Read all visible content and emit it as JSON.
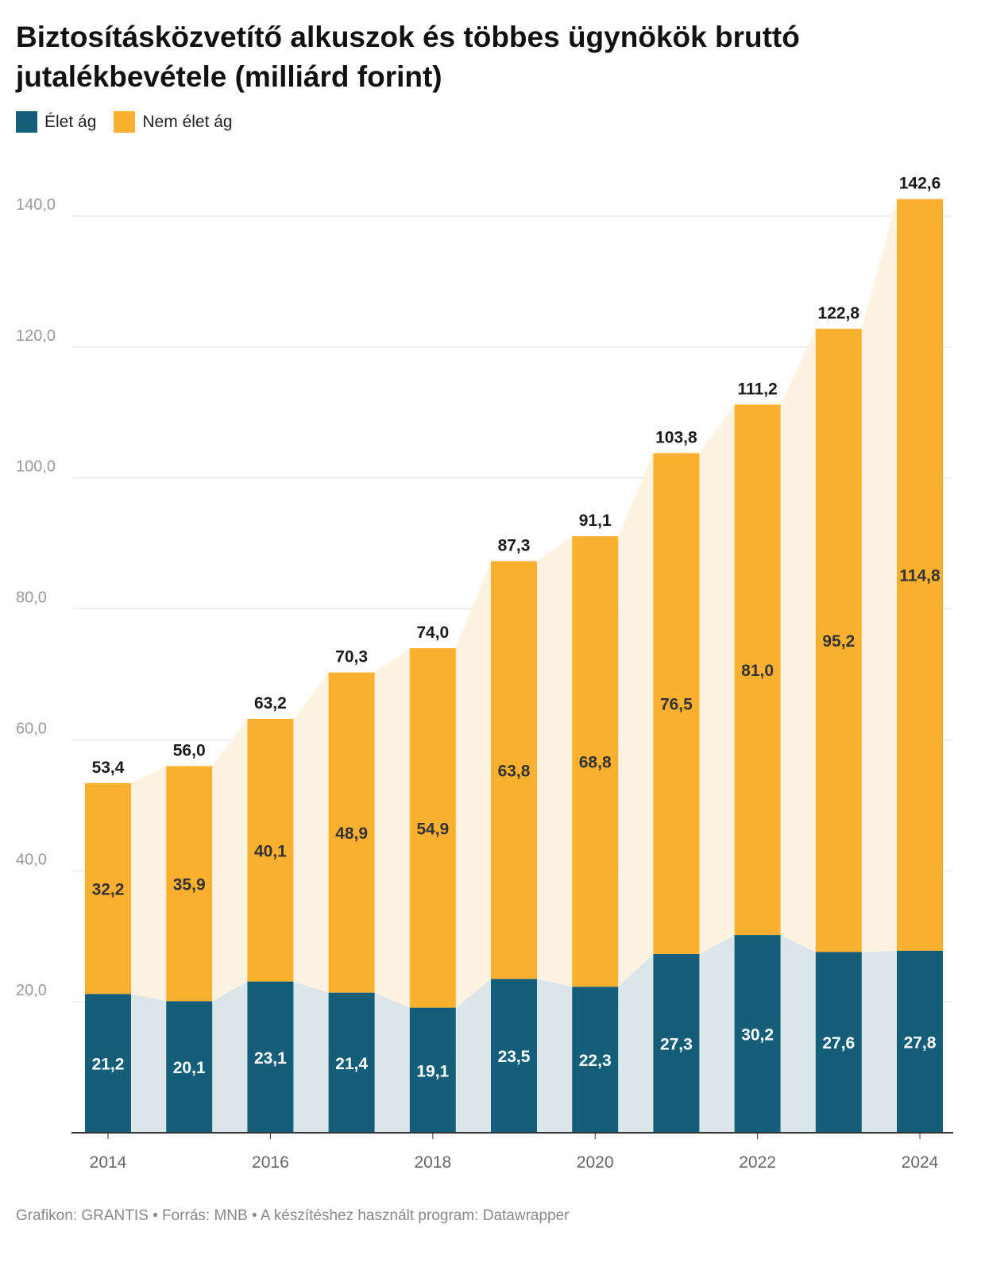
{
  "chart_data": {
    "type": "bar",
    "stacked": true,
    "title": "Biztosításközvetítő alkuszok és többes ügynökök bruttó jutalékbevétele (milliárd forint)",
    "categories": [
      "2014",
      "2015",
      "2016",
      "2017",
      "2018",
      "2019",
      "2020",
      "2021",
      "2022",
      "2023",
      "2024"
    ],
    "x_tick_labels": [
      "2014",
      "2016",
      "2018",
      "2020",
      "2022",
      "2024"
    ],
    "series": [
      {
        "name": "Élet ág",
        "color": "#155e7a",
        "area_color": "#dbe6ea",
        "values": [
          21.2,
          20.1,
          23.1,
          21.4,
          19.1,
          23.5,
          22.3,
          27.3,
          30.2,
          27.6,
          27.8
        ],
        "labels": [
          "21,2",
          "20,1",
          "23,1",
          "21,4",
          "19,1",
          "23,5",
          "22,3",
          "27,3",
          "30,2",
          "27,6",
          "27,8"
        ]
      },
      {
        "name": "Nem élet ág",
        "color": "#fbb030",
        "area_color": "#fef3e0",
        "values": [
          32.2,
          35.9,
          40.1,
          48.9,
          54.9,
          63.8,
          68.8,
          76.5,
          81.0,
          95.2,
          114.8
        ],
        "labels": [
          "32,2",
          "35,9",
          "40,1",
          "48,9",
          "54,9",
          "63,8",
          "68,8",
          "76,5",
          "81,0",
          "95,2",
          "114,8"
        ]
      }
    ],
    "totals": [
      53.4,
      56.0,
      63.2,
      70.3,
      74.0,
      87.3,
      91.1,
      103.8,
      111.2,
      122.8,
      142.6
    ],
    "total_labels": [
      "53,4",
      "56,0",
      "63,2",
      "70,3",
      "74,0",
      "87,3",
      "91,1",
      "103,8",
      "111,2",
      "122,8",
      "142,6"
    ],
    "ylim": [
      0,
      145
    ],
    "y_ticks": [
      20,
      40,
      60,
      80,
      100,
      120,
      140
    ],
    "y_tick_labels": [
      "20,0",
      "40,0",
      "60,0",
      "80,0",
      "100,0",
      "120,0",
      "140,0"
    ],
    "grid": true,
    "legend_position": "top-left",
    "xlabel": "",
    "ylabel": ""
  },
  "footer": "Grafikon: GRANTIS • Forrás: MNB • A készítéshez használt program: Datawrapper"
}
